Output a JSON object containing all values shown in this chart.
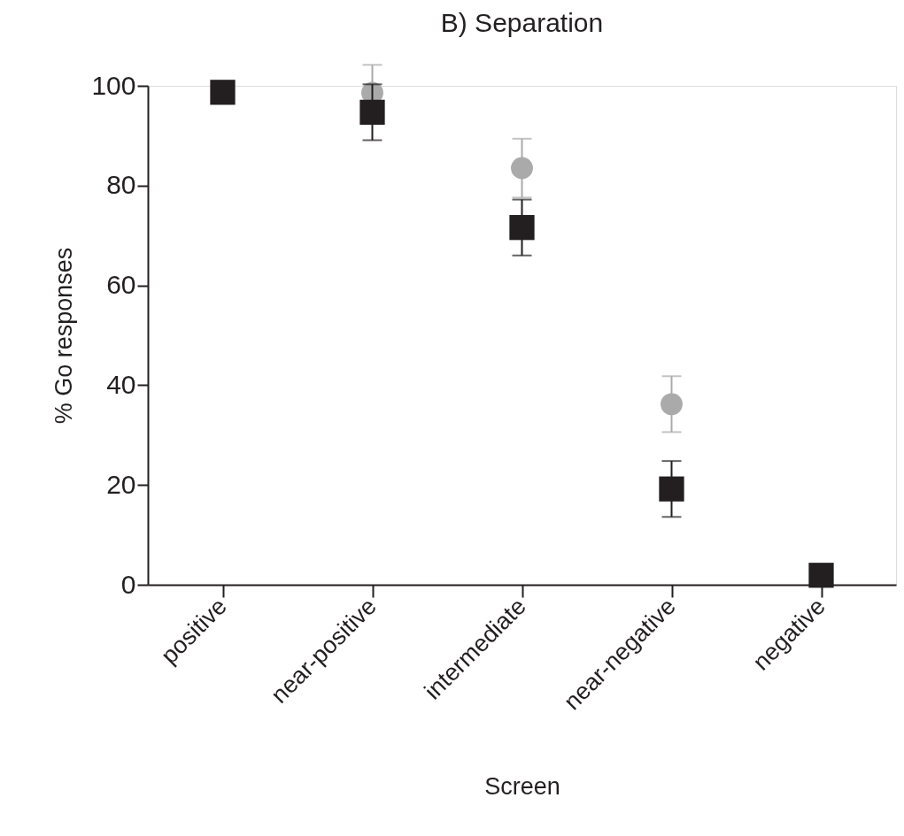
{
  "chart_data": {
    "type": "scatter",
    "title": "B) Separation",
    "xlabel": "Screen",
    "ylabel": "% Go responses",
    "categories": [
      "positive",
      "near-positive",
      "intermediate",
      "near-negative",
      "negative"
    ],
    "ylim": [
      0,
      100
    ],
    "yticks": [
      0,
      20,
      40,
      60,
      80,
      100
    ],
    "grid": false,
    "series": [
      {
        "color": "#aaaaaa",
        "marker": "circle",
        "values": [
          null,
          98.6,
          83.5,
          36.2,
          null
        ],
        "errors": [
          null,
          5.6,
          5.9,
          5.6,
          null
        ]
      },
      {
        "color": "#231f20",
        "marker": "square",
        "values": [
          98.7,
          94.7,
          71.6,
          19.2,
          1.9
        ],
        "errors": [
          null,
          5.6,
          5.6,
          5.6,
          null
        ]
      }
    ]
  }
}
